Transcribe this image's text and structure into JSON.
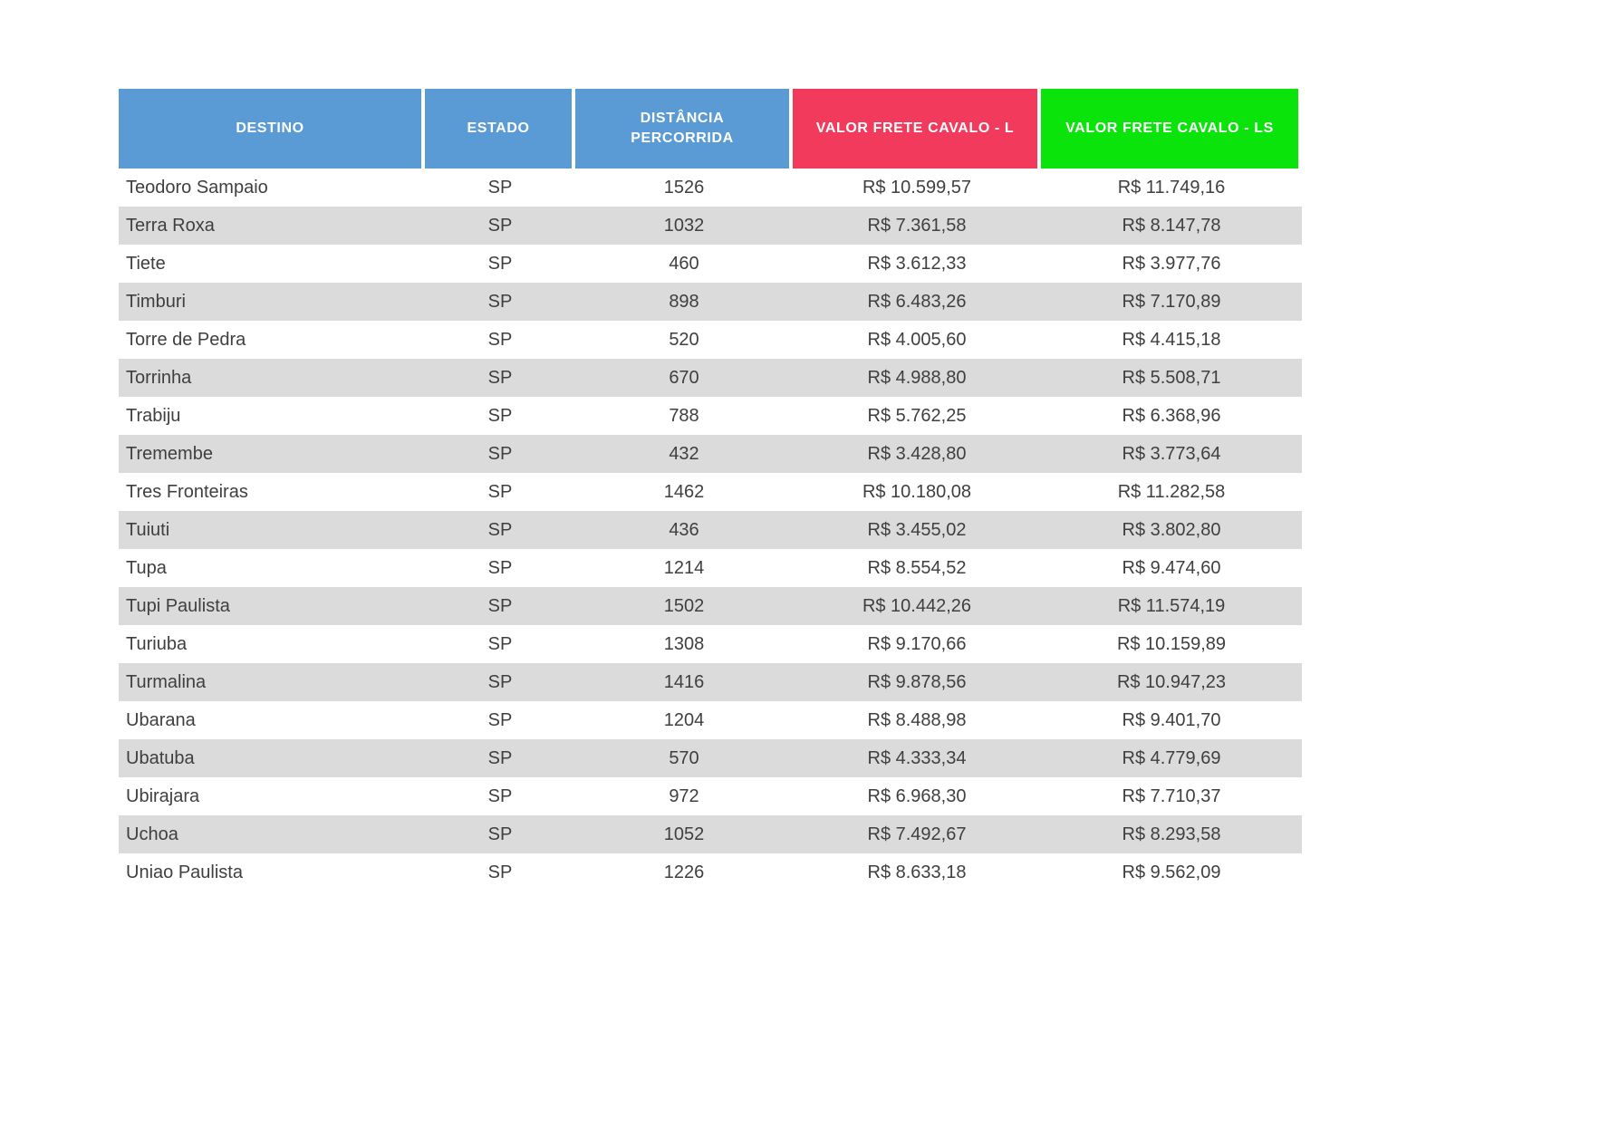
{
  "chart_data": {
    "type": "table",
    "columns": [
      "DESTINO",
      "ESTADO",
      "DISTÂNCIA PERCORRIDA",
      "VALOR FRETE CAVALO - L",
      "VALOR FRETE CAVALO - LS"
    ],
    "header_colors": [
      "#5b9bd5",
      "#5b9bd5",
      "#5b9bd5",
      "#f23a5d",
      "#0ae40a"
    ],
    "stripe_color": "#dbdbdb",
    "text_color": "#3f3f3f",
    "rows": [
      [
        "Teodoro Sampaio",
        "SP",
        "1526",
        "R$ 10.599,57",
        "R$ 11.749,16"
      ],
      [
        "Terra Roxa",
        "SP",
        "1032",
        "R$ 7.361,58",
        "R$ 8.147,78"
      ],
      [
        "Tiete",
        "SP",
        "460",
        "R$ 3.612,33",
        "R$ 3.977,76"
      ],
      [
        "Timburi",
        "SP",
        "898",
        "R$ 6.483,26",
        "R$ 7.170,89"
      ],
      [
        "Torre de Pedra",
        "SP",
        "520",
        "R$ 4.005,60",
        "R$ 4.415,18"
      ],
      [
        "Torrinha",
        "SP",
        "670",
        "R$ 4.988,80",
        "R$ 5.508,71"
      ],
      [
        "Trabiju",
        "SP",
        "788",
        "R$ 5.762,25",
        "R$ 6.368,96"
      ],
      [
        "Tremembe",
        "SP",
        "432",
        "R$ 3.428,80",
        "R$ 3.773,64"
      ],
      [
        "Tres Fronteiras",
        "SP",
        "1462",
        "R$ 10.180,08",
        "R$ 11.282,58"
      ],
      [
        "Tuiuti",
        "SP",
        "436",
        "R$ 3.455,02",
        "R$ 3.802,80"
      ],
      [
        "Tupa",
        "SP",
        "1214",
        "R$ 8.554,52",
        "R$ 9.474,60"
      ],
      [
        "Tupi Paulista",
        "SP",
        "1502",
        "R$ 10.442,26",
        "R$ 11.574,19"
      ],
      [
        "Turiuba",
        "SP",
        "1308",
        "R$ 9.170,66",
        "R$ 10.159,89"
      ],
      [
        "Turmalina",
        "SP",
        "1416",
        "R$ 9.878,56",
        "R$ 10.947,23"
      ],
      [
        "Ubarana",
        "SP",
        "1204",
        "R$ 8.488,98",
        "R$ 9.401,70"
      ],
      [
        "Ubatuba",
        "SP",
        "570",
        "R$ 4.333,34",
        "R$ 4.779,69"
      ],
      [
        "Ubirajara",
        "SP",
        "972",
        "R$ 6.968,30",
        "R$ 7.710,37"
      ],
      [
        "Uchoa",
        "SP",
        "1052",
        "R$ 7.492,67",
        "R$ 8.293,58"
      ],
      [
        "Uniao Paulista",
        "SP",
        "1226",
        "R$ 8.633,18",
        "R$ 9.562,09"
      ]
    ]
  }
}
